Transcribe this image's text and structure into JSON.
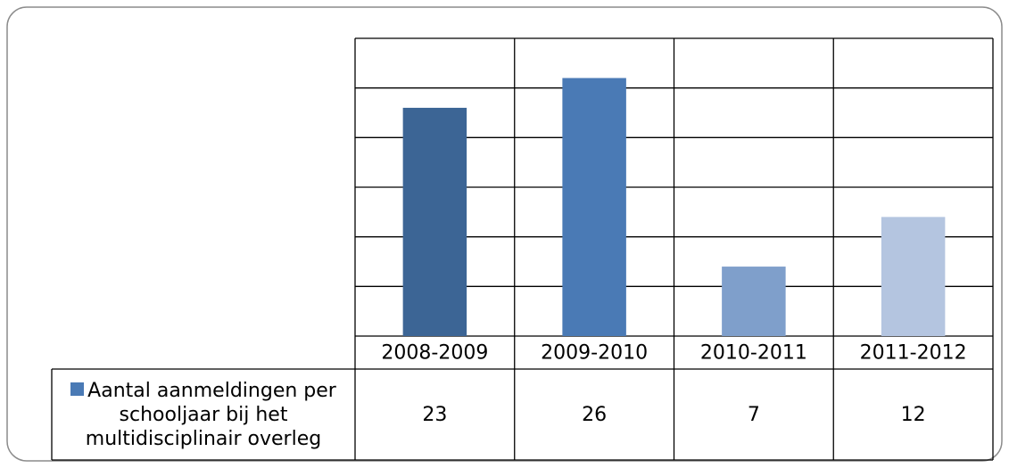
{
  "chart_data": {
    "type": "bar",
    "categories": [
      "2008-2009",
      "2009-2010",
      "2010-2011",
      "2011-2012"
    ],
    "series": [
      {
        "name": "Aantal aanmeldingen per schooljaar bij het multidisciplinair overleg",
        "color": "#4a7ab5",
        "colors": [
          "#3c6595",
          "#4a7ab5",
          "#7f9fcb",
          "#b4c5e0"
        ],
        "values": [
          23,
          26,
          7,
          12
        ]
      }
    ],
    "ylim": [
      0,
      30
    ],
    "yticks": [
      0,
      5,
      10,
      15,
      20,
      25,
      30
    ],
    "grid": true
  }
}
